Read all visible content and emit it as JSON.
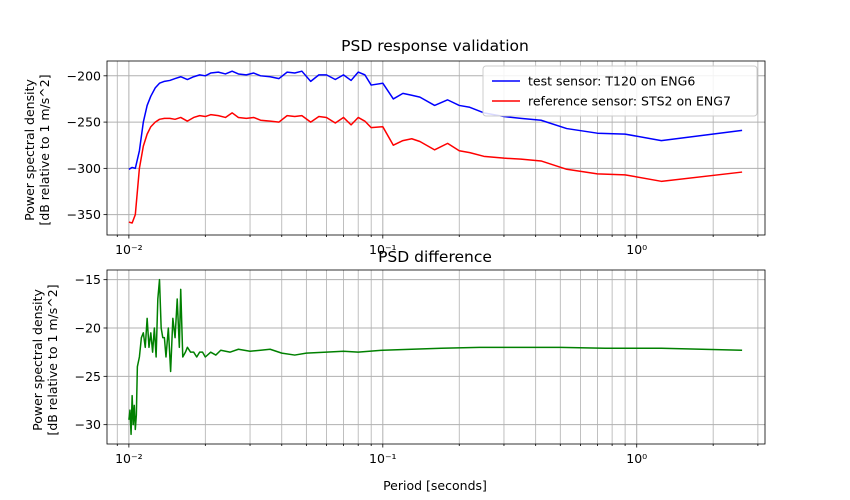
{
  "colors": {
    "test": "#0000ff",
    "reference": "#ff0000",
    "difference": "#008000",
    "grid": "#b0b0b0"
  },
  "chart_data": [
    {
      "type": "line",
      "title": "PSD response validation",
      "xlabel": "Period [seconds]",
      "ylabel": "Power spectral density",
      "ylabel2": "[dB relative to 1 m/s^2]",
      "x_scale": "log",
      "xlim": [
        0.0082,
        3.2
      ],
      "ylim": [
        -372,
        -184
      ],
      "yticks": [
        -200,
        -250,
        -300,
        -350
      ],
      "ytick_labels": [
        "−200",
        "−250",
        "−300",
        "−350"
      ],
      "xticks": [
        0.01,
        0.1,
        1
      ],
      "xtick_labels": [
        "10⁻²",
        "10⁻¹",
        "10⁰"
      ],
      "grid": true,
      "legend_position": "upper right",
      "series": [
        {
          "name": "test sensor: T120 on ENG6",
          "color_key": "test",
          "x": [
            0.01,
            0.0103,
            0.0106,
            0.011,
            0.0114,
            0.0118,
            0.0122,
            0.0127,
            0.0132,
            0.0138,
            0.0145,
            0.0152,
            0.016,
            0.017,
            0.018,
            0.019,
            0.02,
            0.021,
            0.0225,
            0.024,
            0.0255,
            0.027,
            0.029,
            0.031,
            0.033,
            0.036,
            0.039,
            0.042,
            0.045,
            0.048,
            0.052,
            0.056,
            0.06,
            0.065,
            0.07,
            0.075,
            0.08,
            0.085,
            0.09,
            0.1,
            0.11,
            0.12,
            0.13,
            0.14,
            0.16,
            0.18,
            0.2,
            0.22,
            0.25,
            0.3,
            0.35,
            0.42,
            0.53,
            0.7,
            0.9,
            1.25,
            2.6
          ],
          "y": [
            -301,
            -299,
            -300,
            -281,
            -250,
            -232,
            -222,
            -213,
            -208,
            -206,
            -205,
            -203,
            -201,
            -204,
            -201,
            -199,
            -200,
            -197,
            -196,
            -198,
            -195,
            -198,
            -199,
            -197,
            -200,
            -201,
            -203,
            -196,
            -197,
            -195,
            -206,
            -199,
            -199,
            -204,
            -199,
            -205,
            -196,
            -199,
            -210,
            -208,
            -225,
            -219,
            -221,
            -223,
            -232,
            -226,
            -232,
            -234,
            -240,
            -244,
            -246,
            -248,
            -257,
            -262,
            -263,
            -270,
            -259
          ]
        },
        {
          "name": "reference sensor: STS2 on ENG7",
          "color_key": "reference",
          "x": [
            0.01,
            0.0103,
            0.0106,
            0.011,
            0.0114,
            0.0118,
            0.0122,
            0.0127,
            0.0132,
            0.0138,
            0.0145,
            0.0152,
            0.016,
            0.017,
            0.018,
            0.019,
            0.02,
            0.021,
            0.0225,
            0.024,
            0.0255,
            0.027,
            0.029,
            0.031,
            0.033,
            0.036,
            0.039,
            0.042,
            0.045,
            0.048,
            0.052,
            0.056,
            0.06,
            0.065,
            0.07,
            0.075,
            0.08,
            0.085,
            0.09,
            0.1,
            0.11,
            0.12,
            0.13,
            0.14,
            0.16,
            0.18,
            0.2,
            0.22,
            0.25,
            0.3,
            0.35,
            0.42,
            0.53,
            0.7,
            0.9,
            1.25,
            2.6
          ],
          "y": [
            -358,
            -359,
            -350,
            -300,
            -276,
            -263,
            -255,
            -250,
            -247,
            -246,
            -246,
            -247,
            -245,
            -249,
            -245,
            -243,
            -244,
            -242,
            -243,
            -245,
            -240,
            -245,
            -246,
            -245,
            -248,
            -249,
            -250,
            -243,
            -244,
            -243,
            -250,
            -244,
            -245,
            -251,
            -245,
            -253,
            -245,
            -249,
            -256,
            -255,
            -275,
            -270,
            -268,
            -271,
            -280,
            -273,
            -281,
            -283,
            -287,
            -289,
            -290,
            -292,
            -301,
            -306,
            -307,
            -314,
            -304
          ]
        }
      ]
    },
    {
      "type": "line",
      "title": "PSD difference",
      "xlabel": "Period [seconds]",
      "ylabel": "Power spectral density",
      "ylabel2": "[dB relative to 1 m/s^2]",
      "x_scale": "log",
      "xlim": [
        0.0082,
        3.2
      ],
      "ylim": [
        -32,
        -14
      ],
      "yticks": [
        -15,
        -20,
        -25,
        -30
      ],
      "ytick_labels": [
        "−15",
        "−20",
        "−25",
        "−30"
      ],
      "xticks": [
        0.01,
        0.1,
        1
      ],
      "xtick_labels": [
        "10⁻²",
        "10⁻¹",
        "10⁰"
      ],
      "grid": true,
      "series": [
        {
          "color_key": "difference",
          "x": [
            0.01,
            0.0101,
            0.0102,
            0.0103,
            0.0104,
            0.0105,
            0.0106,
            0.0107,
            0.0108,
            0.011,
            0.0112,
            0.0114,
            0.0116,
            0.0118,
            0.012,
            0.0122,
            0.0124,
            0.0126,
            0.0128,
            0.013,
            0.0132,
            0.0134,
            0.0136,
            0.0138,
            0.014,
            0.0143,
            0.0146,
            0.0149,
            0.0152,
            0.0155,
            0.0158,
            0.016,
            0.0163,
            0.0167,
            0.017,
            0.0175,
            0.018,
            0.0185,
            0.019,
            0.0195,
            0.02,
            0.021,
            0.022,
            0.023,
            0.025,
            0.027,
            0.03,
            0.033,
            0.036,
            0.04,
            0.045,
            0.05,
            0.06,
            0.07,
            0.08,
            0.1,
            0.13,
            0.17,
            0.24,
            0.35,
            0.5,
            0.75,
            1.25,
            2.6
          ],
          "y": [
            -29.5,
            -28.5,
            -31,
            -27,
            -30,
            -28,
            -30.5,
            -29,
            -24,
            -23,
            -21,
            -20.5,
            -22,
            -19,
            -22,
            -20.5,
            -22.5,
            -20,
            -23,
            -17,
            -15,
            -20,
            -21,
            -21,
            -23,
            -20,
            -24.5,
            -19,
            -21,
            -17,
            -22,
            -16,
            -23,
            -22.5,
            -22,
            -22.5,
            -22.5,
            -23,
            -22.5,
            -22.5,
            -23,
            -22.5,
            -22.8,
            -22.3,
            -22.5,
            -22.2,
            -22.4,
            -22.3,
            -22.2,
            -22.6,
            -22.8,
            -22.6,
            -22.5,
            -22.4,
            -22.5,
            -22.3,
            -22.2,
            -22.1,
            -22.0,
            -22.0,
            -22.0,
            -22.1,
            -22.1,
            -22.3
          ]
        }
      ]
    }
  ]
}
